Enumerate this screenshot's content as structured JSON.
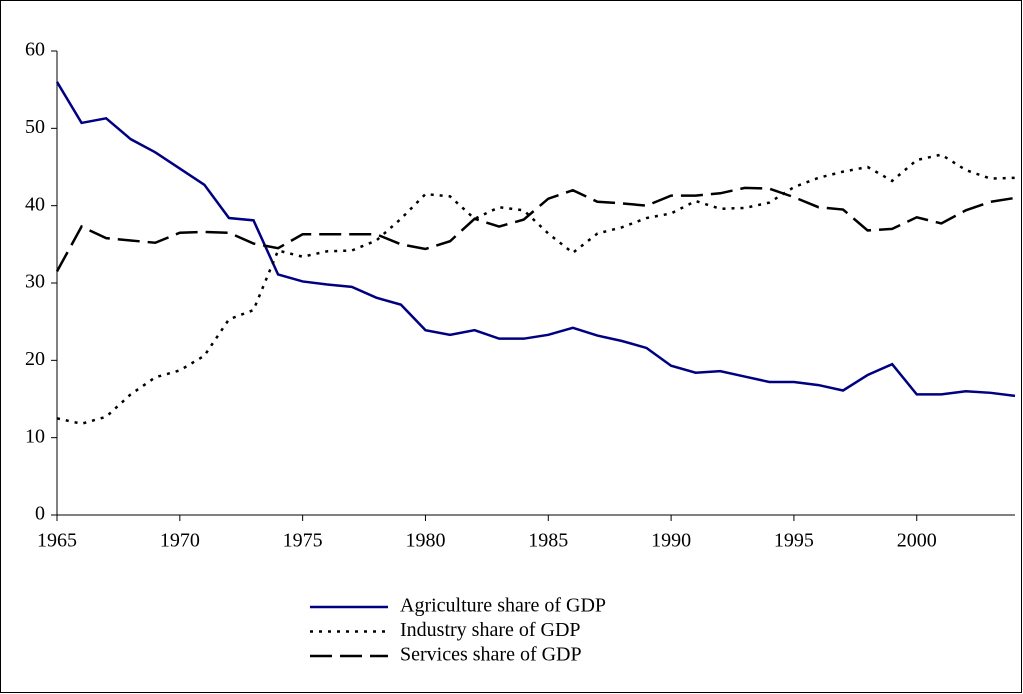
{
  "chart_data": {
    "type": "line",
    "x": [
      1965,
      1966,
      1967,
      1968,
      1969,
      1970,
      1971,
      1972,
      1973,
      1974,
      1975,
      1976,
      1977,
      1978,
      1979,
      1980,
      1981,
      1982,
      1983,
      1984,
      1985,
      1986,
      1987,
      1988,
      1989,
      1990,
      1991,
      1992,
      1993,
      1994,
      1995,
      1996,
      1997,
      1998,
      1999,
      2000,
      2001,
      2002,
      2003,
      2004
    ],
    "series": [
      {
        "name": "Agriculture share of GDP",
        "color": "#000080",
        "style": "solid",
        "values": [
          56,
          50.7,
          51.3,
          48.6,
          46.9,
          44.8,
          42.7,
          38.4,
          38.1,
          31.1,
          30.2,
          29.8,
          29.5,
          28.1,
          27.2,
          23.9,
          23.3,
          23.9,
          22.8,
          22.8,
          23.3,
          24.2,
          23.2,
          22.5,
          21.6,
          19.3,
          18.4,
          18.6,
          17.9,
          17.2,
          17.2,
          16.8,
          16.1,
          18.1,
          19.5,
          15.6,
          15.6,
          16.0,
          15.8,
          15.4
        ]
      },
      {
        "name": "Industry share of GDP",
        "color": "#000000",
        "style": "dotted",
        "values": [
          12.5,
          11.8,
          12.7,
          15.6,
          17.8,
          18.7,
          20.6,
          25.3,
          26.5,
          34.2,
          33.4,
          34.1,
          34.2,
          35.5,
          38.3,
          41.5,
          41.2,
          38.3,
          39.8,
          39.4,
          36.4,
          33.9,
          36.4,
          37.2,
          38.4,
          39.0,
          40.6,
          39.6,
          39.7,
          40.4,
          42.4,
          43.6,
          44.4,
          45.0,
          43.2,
          45.9,
          46.6,
          44.6,
          43.5,
          43.6
        ]
      },
      {
        "name": "Services share of GDP",
        "color": "#000000",
        "style": "dashed",
        "values": [
          31.5,
          37.3,
          35.8,
          35.5,
          35.2,
          36.5,
          36.6,
          36.5,
          35.1,
          34.5,
          36.3,
          36.3,
          36.3,
          36.3,
          35.0,
          34.4,
          35.4,
          38.3,
          37.3,
          38.2,
          40.9,
          42.0,
          40.5,
          40.3,
          40.0,
          41.3,
          41.3,
          41.6,
          42.3,
          42.2,
          41.1,
          39.8,
          39.5,
          36.8,
          37.0,
          38.5,
          37.7,
          39.4,
          40.5,
          41.0
        ]
      }
    ],
    "xlim": [
      1965,
      2004
    ],
    "xticks": [
      1965,
      1970,
      1975,
      1980,
      1985,
      1990,
      1995,
      2000
    ],
    "ylim": [
      0,
      60
    ],
    "yticks": [
      0,
      10,
      20,
      30,
      40,
      50,
      60
    ],
    "legend": "bottom"
  }
}
